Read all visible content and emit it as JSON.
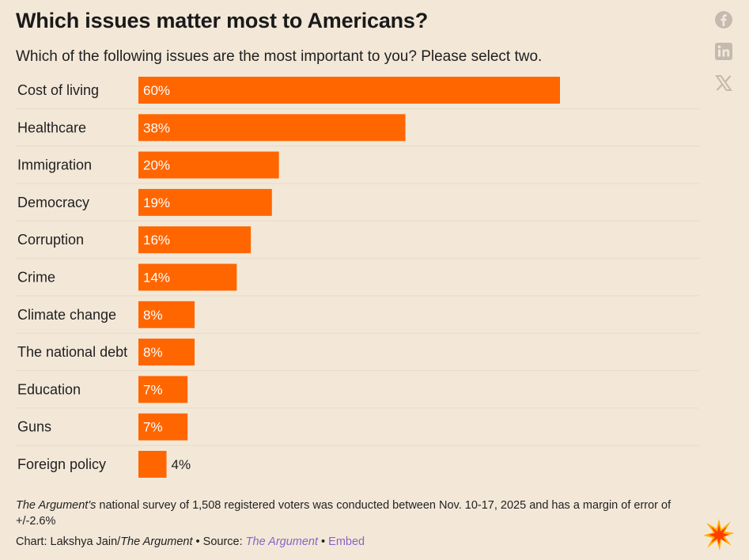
{
  "header": {
    "title": "Which issues matter most to Americans?",
    "subtitle": "Which of the following issues are the most important to you? Please select two."
  },
  "share_icons": [
    "facebook-icon",
    "linkedin-icon",
    "x-icon"
  ],
  "colors": {
    "background": "#f3e8d8",
    "bar": "#ff6600",
    "grid": "#e6dac8",
    "icon": "#c4bab0",
    "link": "#8a63c7"
  },
  "chart_data": {
    "type": "bar",
    "orientation": "horizontal",
    "categories": [
      "Cost of living",
      "Healthcare",
      "Immigration",
      "Democracy",
      "Corruption",
      "Crime",
      "Climate change",
      "The national debt",
      "Education",
      "Guns",
      "Foreign policy"
    ],
    "values": [
      60,
      38,
      20,
      19,
      16,
      14,
      8,
      8,
      7,
      7,
      4
    ],
    "labels": [
      "60%",
      "38%",
      "20%",
      "19%",
      "16%",
      "14%",
      "8%",
      "8%",
      "7%",
      "7%",
      "4%"
    ],
    "xlim": [
      0,
      80
    ],
    "grid": false,
    "title": "Which issues matter most to Americans?",
    "subtitle": "Which of the following issues are the most important to you? Please select two."
  },
  "footer": {
    "note_source": "The Argument's",
    "note_text": " national survey of 1,508 registered voters was conducted between Nov. 10-17, 2025 and has a margin of error of +/-2.6%",
    "chart_prefix": "Chart: Lakshya Jain/",
    "chart_org": "The Argument",
    "separator1": " • Source: ",
    "source_link": "The Argument",
    "separator2": " • ",
    "embed_link": "Embed"
  }
}
